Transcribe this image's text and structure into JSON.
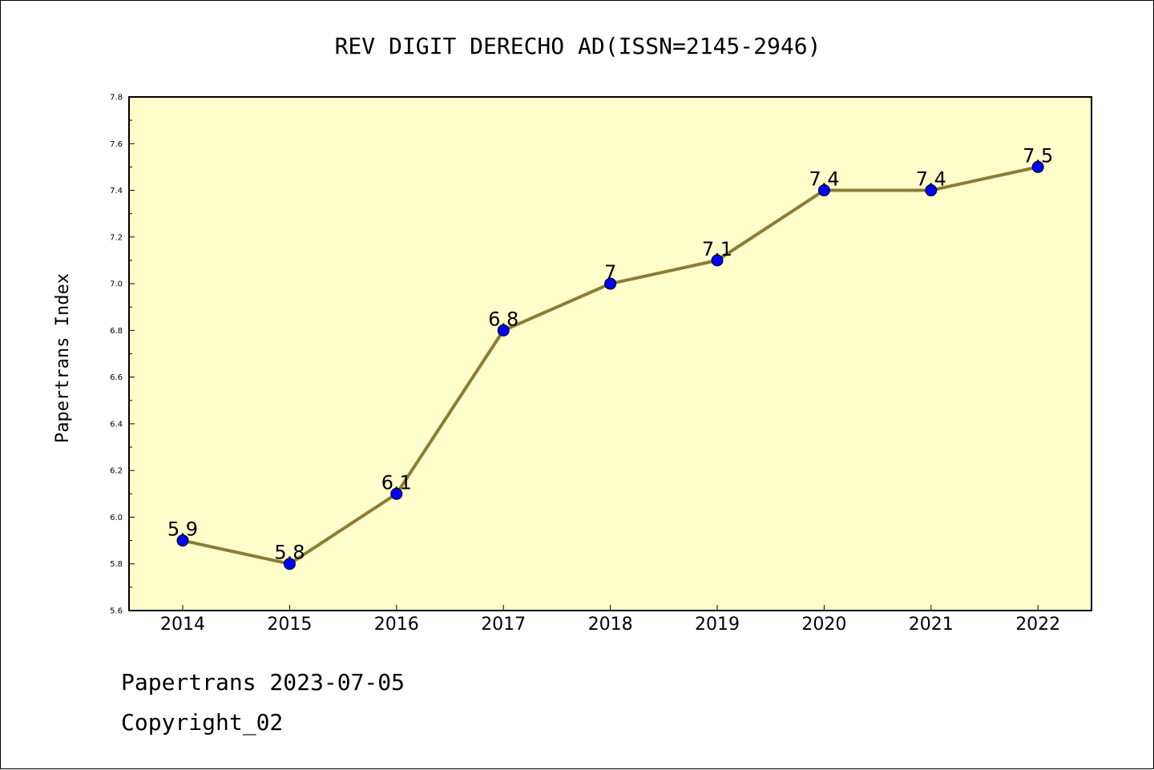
{
  "chart_data": {
    "type": "line",
    "title": "REV DIGIT DERECHO AD(ISSN=2145-2946)",
    "xlabel": "",
    "ylabel": "Papertrans Index",
    "categories": [
      "2014",
      "2015",
      "2016",
      "2017",
      "2018",
      "2019",
      "2020",
      "2021",
      "2022"
    ],
    "series": [
      {
        "values": [
          5.9,
          5.8,
          6.1,
          6.8,
          7.0,
          7.1,
          7.4,
          7.4,
          7.5
        ],
        "data_labels": [
          "5.9",
          "5.8",
          "6.1",
          "6.8",
          "7",
          "7.1",
          "7.4",
          "7.4",
          "7.5"
        ]
      }
    ],
    "ylim": [
      5.6,
      7.8
    ],
    "yticks": [
      "5.6",
      "5.8",
      "6.0",
      "6.2",
      "6.4",
      "6.6",
      "6.8",
      "7.0",
      "7.2",
      "7.4",
      "7.6",
      "7.8"
    ],
    "grid": false,
    "colors": {
      "plot_background": "#ffffcc",
      "line": "#8b7d35",
      "marker": "#0000ff"
    }
  },
  "footer": {
    "line1": "Papertrans 2023-07-05",
    "line2": "Copyright_02"
  }
}
